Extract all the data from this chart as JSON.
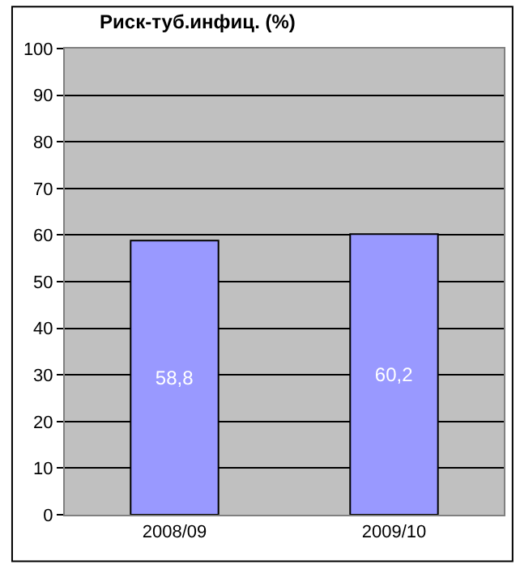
{
  "chart_data": {
    "type": "bar",
    "title": "Риск-туб.инфиц. (%)",
    "categories": [
      "2008/09",
      "2009/10"
    ],
    "values": [
      58.8,
      60.2
    ],
    "color": "#9999ff",
    "value_labels": [
      "58,8",
      "60,2"
    ],
    "ylim": [
      0,
      100
    ],
    "yticks": [
      0,
      10,
      20,
      30,
      40,
      50,
      60,
      70,
      80,
      90,
      100
    ],
    "grid": "y",
    "legend": false
  }
}
